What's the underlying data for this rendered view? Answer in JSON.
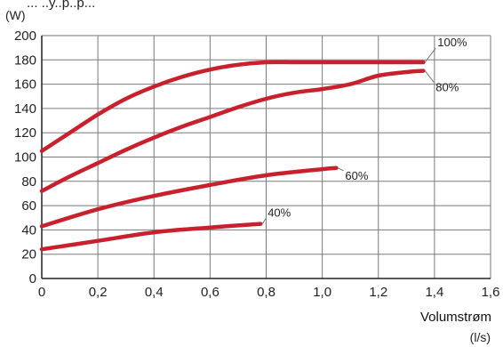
{
  "header_text": "... ..y..p..p...",
  "chart_data": {
    "type": "line",
    "ylabel_unit": "(W)",
    "xlabel": "Volumstrøm",
    "xlabel_unit": "(l/s)",
    "xlim": [
      0,
      1.6
    ],
    "ylim": [
      0,
      200
    ],
    "xticks": [
      "0",
      "0,2",
      "0,4",
      "0,6",
      "0,8",
      "1,0",
      "1,2",
      "1,4",
      "1,6"
    ],
    "yticks": [
      "0",
      "20",
      "40",
      "60",
      "80",
      "100",
      "120",
      "140",
      "160",
      "180",
      "200"
    ],
    "grid": true,
    "line_color": "#c8202c",
    "series": [
      {
        "name": "100%",
        "x": [
          0,
          0.1,
          0.2,
          0.3,
          0.4,
          0.5,
          0.6,
          0.7,
          0.8,
          0.9,
          1.0,
          1.1,
          1.2,
          1.3,
          1.36
        ],
        "y": [
          105,
          120,
          135,
          148,
          158,
          166,
          172,
          176,
          178,
          178,
          178,
          178,
          178,
          178,
          178
        ]
      },
      {
        "name": "80%",
        "x": [
          0,
          0.1,
          0.2,
          0.3,
          0.4,
          0.5,
          0.6,
          0.7,
          0.8,
          0.9,
          1.0,
          1.1,
          1.2,
          1.3,
          1.36
        ],
        "y": [
          72,
          84,
          95,
          106,
          116,
          125,
          133,
          141,
          148,
          153,
          156,
          160,
          167,
          170,
          171
        ]
      },
      {
        "name": "60%",
        "x": [
          0,
          0.2,
          0.4,
          0.6,
          0.8,
          1.0,
          1.05
        ],
        "y": [
          43,
          57,
          68,
          77,
          85,
          90,
          91
        ]
      },
      {
        "name": "40%",
        "x": [
          0,
          0.2,
          0.4,
          0.6,
          0.78
        ],
        "y": [
          24,
          31,
          38,
          42,
          45
        ]
      }
    ]
  }
}
